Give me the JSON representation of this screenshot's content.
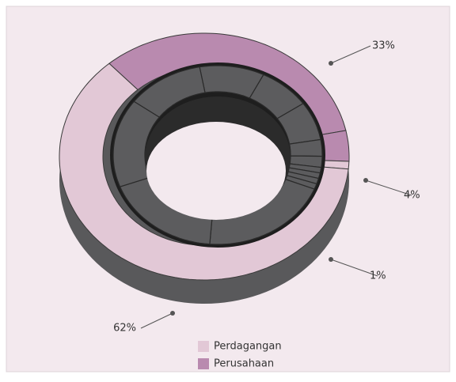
{
  "chart_data": {
    "type": "donut",
    "value_labels": [
      "33%",
      "4%",
      "1%",
      "62%"
    ],
    "values": [
      33,
      4,
      1,
      62
    ],
    "colors": [
      "#b98aaf",
      "#b98aaf",
      "#e2c8d6",
      "#e2c8d6"
    ],
    "inner_values": [
      10,
      8,
      7,
      3,
      2,
      1,
      1,
      1,
      1,
      20,
      18,
      16,
      12
    ],
    "inner_color": "#5c5c5e",
    "legend": [
      {
        "name": "Perdagangan",
        "color": "#e2c8d6"
      },
      {
        "name": "Perusahaan",
        "color": "#b98aaf"
      }
    ]
  }
}
